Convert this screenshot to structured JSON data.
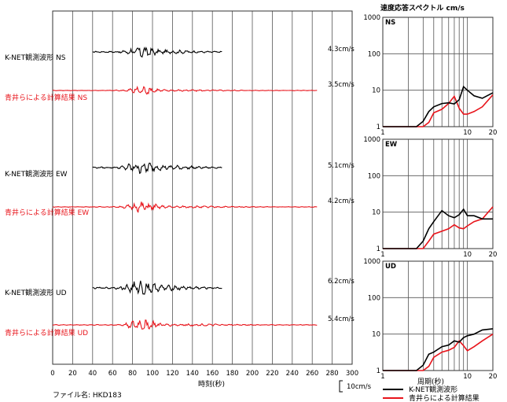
{
  "spectrum_title": "速度応答スペクトル cm/s",
  "x_axis_title": "時刻(秒)",
  "x_ticks": [
    "0",
    "20",
    "40",
    "60",
    "80",
    "100",
    "120",
    "140",
    "160",
    "180",
    "200",
    "220",
    "240",
    "260",
    "280",
    "300"
  ],
  "scale_label": "10cm/s",
  "file_label": "ファイル名: HKD183",
  "colors": {
    "observed": "#000000",
    "computed": "#e8141b"
  },
  "chart_data": [
    {
      "type": "line",
      "title": "",
      "xlabel": "時刻(秒)",
      "xlim": [
        0,
        300
      ],
      "traces": [
        {
          "component": "NS",
          "name": "K-NET観測波形 NS",
          "source": "observed",
          "max_label": "4.3cm/s",
          "t_range": [
            40,
            170
          ]
        },
        {
          "component": "NS",
          "name": "青井らによる計算結果 NS",
          "source": "computed",
          "max_label": "3.5cm/s",
          "t_range": [
            0,
            265
          ]
        },
        {
          "component": "EW",
          "name": "K-NET観測波形 EW",
          "source": "observed",
          "max_label": "5.1cm/s",
          "t_range": [
            40,
            170
          ]
        },
        {
          "component": "EW",
          "name": "青井らによる計算結果 EW",
          "source": "computed",
          "max_label": "4.2cm/s",
          "t_range": [
            0,
            265
          ]
        },
        {
          "component": "UD",
          "name": "K-NET観測波形 UD",
          "source": "observed",
          "max_label": "6.2cm/s",
          "t_range": [
            40,
            170
          ]
        },
        {
          "component": "UD",
          "name": "青井らによる計算結果 UD",
          "source": "computed",
          "max_label": "5.4cm/s",
          "t_range": [
            0,
            265
          ]
        }
      ]
    },
    {
      "type": "line",
      "title": "速度応答スペクトル cm/s",
      "xlabel": "周期(秒)",
      "x_scale": "log",
      "y_scale": "log",
      "xlim": [
        1,
        20
      ],
      "ylim": [
        1,
        1000
      ],
      "x_tick_labels": [
        "1",
        "10",
        "20"
      ],
      "y_tick_labels": [
        "1",
        "10",
        "100",
        "1000"
      ],
      "legend": [
        "K-NET観測波形",
        "青井らによる計算結果"
      ],
      "panels": [
        {
          "label": "NS",
          "observed": {
            "x": [
              1,
              2.5,
              3,
              3.5,
              4,
              5,
              6,
              7,
              8,
              9,
              10,
              12,
              15,
              20
            ],
            "y": [
              1,
              1,
              1.4,
              2.6,
              3.5,
              4.3,
              4.5,
              4.2,
              5.5,
              12.5,
              10,
              7,
              6,
              8.5
            ]
          },
          "computed": {
            "x": [
              1,
              3,
              3.5,
              4,
              5,
              6,
              7,
              8,
              9,
              10,
              12,
              15,
              20
            ],
            "y": [
              1,
              1,
              1.3,
              2.4,
              3,
              4.3,
              6.8,
              3.2,
              2.2,
              2.2,
              2.6,
              3.5,
              7.5
            ]
          }
        },
        {
          "label": "EW",
          "observed": {
            "x": [
              1,
              2.5,
              3,
              3.5,
              4,
              5,
              6,
              7,
              8,
              9,
              10,
              12,
              15,
              20
            ],
            "y": [
              1,
              1,
              1.6,
              3.5,
              5.5,
              11,
              8,
              7,
              8.5,
              12,
              8,
              8,
              6.5,
              6.5
            ]
          },
          "computed": {
            "x": [
              1,
              3,
              3.5,
              4,
              5,
              6,
              7,
              8,
              9,
              10,
              12,
              15,
              20
            ],
            "y": [
              1,
              1,
              1.6,
              2.5,
              3,
              3.5,
              4.5,
              3.7,
              3.5,
              4.2,
              5.5,
              6.5,
              14
            ]
          }
        },
        {
          "label": "UD",
          "observed": {
            "x": [
              1,
              2.5,
              3,
              3.5,
              4,
              5,
              6,
              7,
              8,
              9,
              10,
              12,
              15,
              20
            ],
            "y": [
              1,
              1,
              1.4,
              2.8,
              3.2,
              4.5,
              5,
              6.5,
              6,
              8,
              9,
              10,
              13,
              14
            ]
          },
          "computed": {
            "x": [
              1,
              3,
              3.5,
              4,
              5,
              6,
              7,
              8,
              9,
              10,
              12,
              15,
              20
            ],
            "y": [
              1,
              1,
              1.3,
              2.3,
              3.2,
              3.6,
              4.3,
              6.5,
              4.8,
              3.5,
              4.5,
              6.5,
              10
            ]
          }
        }
      ]
    }
  ]
}
